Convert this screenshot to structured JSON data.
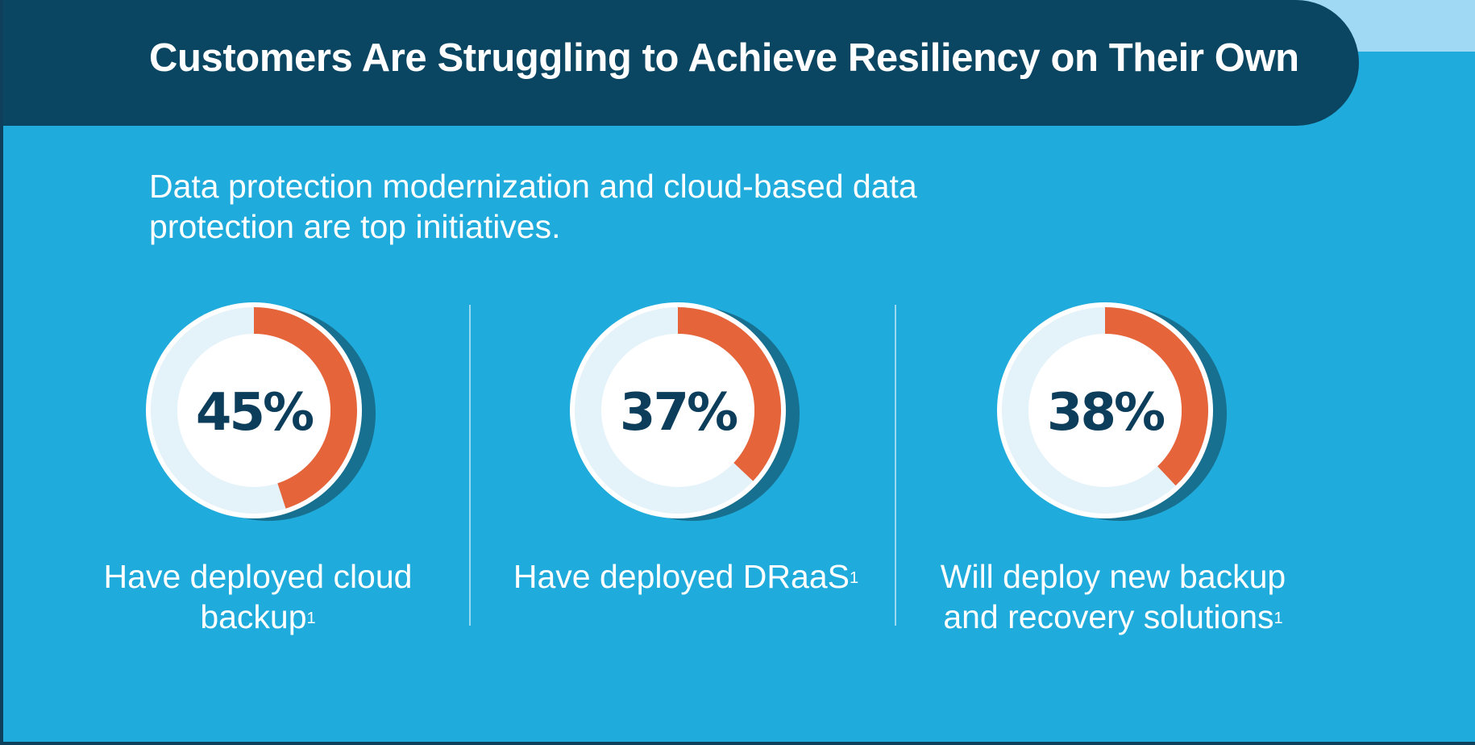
{
  "header": {
    "title": "Customers Are Struggling to Achieve Resiliency on Their Own"
  },
  "subtitle": "Data protection modernization and cloud-based data protection are top initiatives.",
  "colors": {
    "background": "#1fabdb",
    "header_band": "#0a4662",
    "accent": "#e5643a",
    "ring_track": "#e4f2fa",
    "ring_shadow": "#17708f",
    "ring_border": "#ffffff",
    "percent_text": "#0c3e5c"
  },
  "chart_data": {
    "type": "pie",
    "variant": "donut",
    "title": "Customers Are Struggling to Achieve Resiliency on Their Own",
    "items": [
      {
        "value": 45,
        "display": "45%",
        "label": "Have deployed cloud backup",
        "footnote": "1"
      },
      {
        "value": 37,
        "display": "37%",
        "label": "Have deployed DRaaS",
        "footnote": "1"
      },
      {
        "value": 38,
        "display": "38%",
        "label": "Will deploy new backup and recovery solutions",
        "footnote": "1"
      }
    ]
  }
}
